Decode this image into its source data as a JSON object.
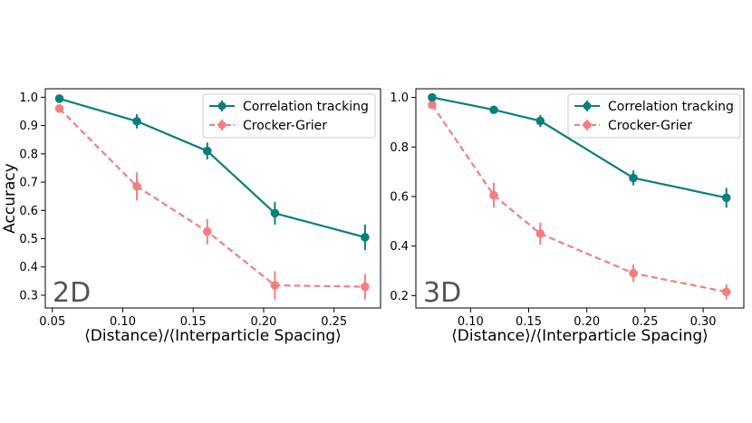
{
  "colors": {
    "correlation_tracking": "#0b7f7a",
    "crocker_grier": "#f08080",
    "panel_tag": "#555555",
    "legend_border": "#cccccc"
  },
  "chart_data": [
    {
      "type": "line",
      "panel_label": "2D",
      "xlabel": "⟨Distance⟩/⟨Interparticle Spacing⟩",
      "ylabel": "Accuracy",
      "xlim": [
        0.045,
        0.283
      ],
      "ylim": [
        0.255,
        1.03
      ],
      "xticks": [
        0.05,
        0.1,
        0.15,
        0.2,
        0.25
      ],
      "xtick_labels": [
        "0.05",
        "0.10",
        "0.15",
        "0.20",
        "0.25"
      ],
      "yticks": [
        0.3,
        0.4,
        0.5,
        0.6,
        0.7,
        0.8,
        0.9,
        1.0
      ],
      "ytick_labels": [
        "0.3",
        "0.4",
        "0.5",
        "0.6",
        "0.7",
        "0.8",
        "0.9",
        "1.0"
      ],
      "legend_position": "top-right",
      "grid": false,
      "series": [
        {
          "name": "Correlation tracking",
          "style": "solid",
          "x": [
            0.055,
            0.11,
            0.16,
            0.208,
            0.272
          ],
          "y": [
            0.995,
            0.915,
            0.81,
            0.59,
            0.505
          ],
          "err": [
            0.008,
            0.025,
            0.03,
            0.04,
            0.045
          ]
        },
        {
          "name": "Crocker-Grier",
          "style": "dashed",
          "x": [
            0.055,
            0.11,
            0.16,
            0.208,
            0.272
          ],
          "y": [
            0.96,
            0.685,
            0.525,
            0.335,
            0.33
          ],
          "err": [
            0.01,
            0.05,
            0.045,
            0.05,
            0.045
          ]
        }
      ]
    },
    {
      "type": "line",
      "panel_label": "3D",
      "xlabel": "⟨Distance⟩/⟨Interparticle Spacing⟩",
      "ylabel": "",
      "xlim": [
        0.053,
        0.335
      ],
      "ylim": [
        0.15,
        1.035
      ],
      "xticks": [
        0.1,
        0.15,
        0.2,
        0.25,
        0.3
      ],
      "xtick_labels": [
        "0.10",
        "0.15",
        "0.20",
        "0.25",
        "0.30"
      ],
      "yticks": [
        0.2,
        0.4,
        0.6,
        0.8,
        1.0
      ],
      "ytick_labels": [
        "0.2",
        "0.4",
        "0.6",
        "0.8",
        "1.0"
      ],
      "legend_position": "top-right",
      "grid": false,
      "series": [
        {
          "name": "Correlation tracking",
          "style": "solid",
          "x": [
            0.067,
            0.12,
            0.16,
            0.24,
            0.32
          ],
          "y": [
            1.0,
            0.95,
            0.905,
            0.675,
            0.595
          ],
          "err": [
            0.01,
            0.015,
            0.025,
            0.03,
            0.04
          ]
        },
        {
          "name": "Crocker-Grier",
          "style": "dashed",
          "x": [
            0.067,
            0.12,
            0.16,
            0.24,
            0.32
          ],
          "y": [
            0.97,
            0.605,
            0.45,
            0.29,
            0.215
          ],
          "err": [
            0.01,
            0.05,
            0.045,
            0.035,
            0.03
          ]
        }
      ]
    }
  ]
}
